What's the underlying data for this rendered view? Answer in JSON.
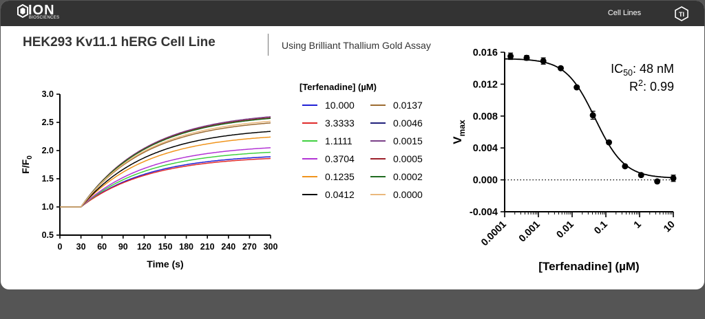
{
  "header": {
    "logo_main": "ION",
    "logo_sub": "BIOSCIENCES",
    "nav_label": "Cell Lines"
  },
  "title": "HEK293 Kv11.1 hERG Cell Line",
  "subtitle": "Using Brilliant Thallium Gold Assay",
  "chart_data": [
    {
      "type": "line",
      "xlabel": "Time (s)",
      "ylabel": "F/F",
      "ylabel_sub": "0",
      "xlim": [
        0,
        300
      ],
      "ylim": [
        0.5,
        3.0
      ],
      "xticks": [
        "0",
        "30",
        "60",
        "90",
        "120",
        "150",
        "180",
        "210",
        "240",
        "270",
        "300"
      ],
      "yticks": [
        "0.5",
        "1.0",
        "1.5",
        "2.0",
        "2.5",
        "3.0"
      ],
      "legend_title": "[Terfenadine] (µM)",
      "baseline": 1.0,
      "onset": 30,
      "series": [
        {
          "name": "10.000",
          "color": "#1f1fd6",
          "plateau": 1.89
        },
        {
          "name": "3.3333",
          "color": "#e02a2a",
          "plateau": 1.86
        },
        {
          "name": "1.1111",
          "color": "#3fd03f",
          "plateau": 1.97
        },
        {
          "name": "0.3704",
          "color": "#b233d4",
          "plateau": 2.05
        },
        {
          "name": "0.1235",
          "color": "#f0941c",
          "plateau": 2.24
        },
        {
          "name": "0.0412",
          "color": "#000000",
          "plateau": 2.34
        },
        {
          "name": "0.0137",
          "color": "#9c6b30",
          "plateau": 2.49
        },
        {
          "name": "0.0046",
          "color": "#1f1f7a",
          "plateau": 2.58
        },
        {
          "name": "0.0015",
          "color": "#7a3f88",
          "plateau": 2.6
        },
        {
          "name": "0.0005",
          "color": "#9c1f2a",
          "plateau": 2.58
        },
        {
          "name": "0.0002",
          "color": "#1f6a1f",
          "plateau": 2.57
        },
        {
          "name": "0.0000",
          "color": "#eab87c",
          "plateau": 2.52
        }
      ]
    },
    {
      "type": "scatter",
      "xlabel": "[Terfenadine] (µM)",
      "ylabel": "V",
      "ylabel_sub": "max",
      "xscale": "log",
      "xlim": [
        0.0001,
        10
      ],
      "ylim": [
        -0.004,
        0.016
      ],
      "xticks": [
        "0.0001",
        "0.001",
        "0.01",
        "0.1",
        "1",
        "10"
      ],
      "yticks": [
        "-0.004",
        "0.000",
        "0.004",
        "0.008",
        "0.012",
        "0.016"
      ],
      "annotation_ic50_label": "IC",
      "annotation_ic50_sub": "50",
      "annotation_ic50_value": ": 48 nM",
      "annotation_r2_label": "R",
      "annotation_r2_sup": "2",
      "annotation_r2_value": ": 0.99",
      "zero_line": "dotted",
      "points": [
        {
          "x": 0.00015,
          "y": 0.0155,
          "err": 0.0004
        },
        {
          "x": 0.00045,
          "y": 0.0153,
          "err": 0.0003
        },
        {
          "x": 0.0014,
          "y": 0.0149,
          "err": 0.0004
        },
        {
          "x": 0.0046,
          "y": 0.014,
          "err": 0.0002
        },
        {
          "x": 0.0137,
          "y": 0.0116,
          "err": 0.0002
        },
        {
          "x": 0.0412,
          "y": 0.0081,
          "err": 0.0005
        },
        {
          "x": 0.1235,
          "y": 0.0047,
          "err": 0.0002
        },
        {
          "x": 0.3704,
          "y": 0.0017,
          "err": 0.0002
        },
        {
          "x": 1.1111,
          "y": 0.0006,
          "err": 0.0002
        },
        {
          "x": 3.3333,
          "y": -0.0002,
          "err": 0.0002
        },
        {
          "x": 10.0,
          "y": 0.0002,
          "err": 0.0004
        }
      ],
      "fit": {
        "top": 0.0152,
        "bottom": 0.0002,
        "ic50": 0.048,
        "hill": 1.0
      }
    }
  ]
}
